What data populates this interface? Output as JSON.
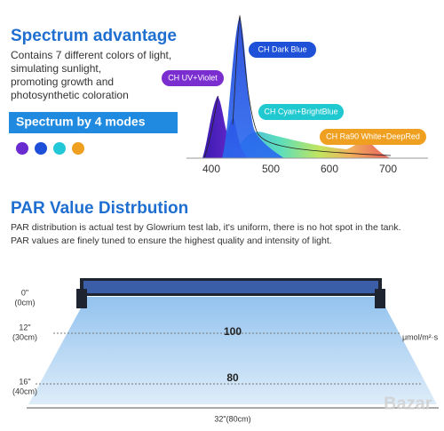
{
  "spectrum": {
    "title": "Spectrum advantage",
    "description": [
      "Contains 7 different colors of light,",
      "simulating sunlight,",
      "promoting growth and",
      "photosynthetic coloration"
    ],
    "modes_banner": "Spectrum by 4 modes",
    "channel_labels": [
      "CH Dark Blue",
      "CH UV+Violet",
      "CH Cyan+BrightBlue",
      "CH Ra90 White+DeepRed"
    ],
    "axis_ticks": [
      "400",
      "500",
      "600",
      "700"
    ]
  },
  "par": {
    "title": "PAR Value Distrbution",
    "description": [
      "PAR distribution is actual test by Glowrium test lab, it's uniform, there is no hot spot in the tank.",
      "PAR values are finely tuned to ensure the highest quality and intensity of light."
    ],
    "heights": [
      {
        "inch": "0\"",
        "cm": "(0cm)"
      },
      {
        "inch": "12\"",
        "cm": "(30cm)"
      },
      {
        "inch": "16\"",
        "cm": "(40cm)"
      }
    ],
    "values": [
      "100",
      "80"
    ],
    "unit": "μmol/m²·s",
    "width": "32\"(80cm)"
  },
  "watermark": "Bazar"
}
